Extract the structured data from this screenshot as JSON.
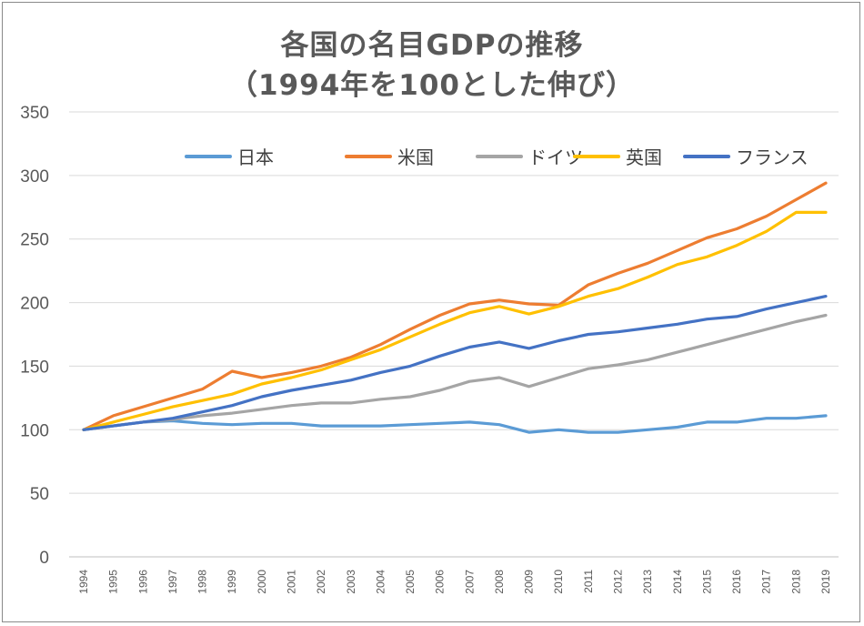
{
  "chart_data": {
    "type": "line",
    "title_line1": "各国の名目GDPの推移",
    "title_line2": "（1994年を100とした伸び）",
    "xlabel": "",
    "ylabel": "",
    "ylim": [
      0,
      350
    ],
    "yticks": [
      "0",
      "50",
      "100",
      "150",
      "200",
      "250",
      "300",
      "350"
    ],
    "grid": true,
    "legend_position": "top-right",
    "categories": [
      "1994",
      "1995",
      "1996",
      "1997",
      "1998",
      "1999",
      "2000",
      "2001",
      "2002",
      "2003",
      "2004",
      "2005",
      "2006",
      "2007",
      "2008",
      "2009",
      "2010",
      "2011",
      "2012",
      "2013",
      "2014",
      "2015",
      "2016",
      "2017",
      "2018",
      "2019"
    ],
    "series": [
      {
        "name": "日本",
        "color": "#5b9bd5",
        "values": [
          100,
          103,
          106,
          107,
          105,
          104,
          105,
          105,
          103,
          103,
          103,
          104,
          105,
          106,
          104,
          98,
          100,
          98,
          98,
          100,
          102,
          106,
          106,
          109,
          109,
          111
        ]
      },
      {
        "name": "米国",
        "color": "#ed7d31",
        "values": [
          100,
          111,
          118,
          125,
          132,
          146,
          141,
          145,
          150,
          157,
          167,
          179,
          190,
          199,
          202,
          199,
          198,
          214,
          223,
          231,
          241,
          251,
          258,
          268,
          281,
          294
        ]
      },
      {
        "name": "ドイツ",
        "color": "#a5a5a5",
        "values": [
          100,
          103,
          106,
          108,
          111,
          113,
          116,
          119,
          121,
          121,
          124,
          126,
          131,
          138,
          141,
          134,
          141,
          148,
          151,
          155,
          161,
          167,
          173,
          179,
          185,
          190
        ]
      },
      {
        "name": "英国",
        "color": "#ffc000",
        "values": [
          100,
          106,
          112,
          118,
          123,
          128,
          136,
          141,
          147,
          155,
          163,
          173,
          183,
          192,
          197,
          191,
          197,
          205,
          211,
          220,
          230,
          236,
          245,
          256,
          271,
          271
        ]
      },
      {
        "name": "フランス",
        "color": "#4472c4",
        "values": [
          100,
          103,
          106,
          109,
          114,
          119,
          126,
          131,
          135,
          139,
          145,
          150,
          158,
          165,
          169,
          164,
          170,
          175,
          177,
          180,
          183,
          187,
          189,
          195,
          200,
          205
        ]
      }
    ]
  }
}
